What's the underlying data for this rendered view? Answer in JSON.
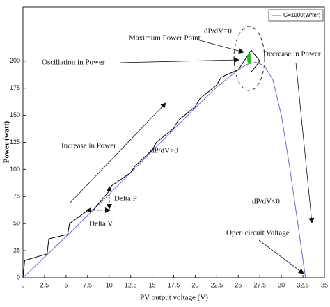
{
  "chart_data": {
    "type": "line",
    "xlabel": "PV output voltage (V)",
    "ylabel": "Power (watt)",
    "xlim": [
      0,
      35
    ],
    "ylim": [
      0,
      250
    ],
    "xticks": [
      0,
      2.5,
      5,
      7.5,
      10,
      12.5,
      15,
      17.5,
      20,
      22.5,
      25,
      27.5,
      30,
      32.5,
      35
    ],
    "yticks": [
      0,
      25,
      50,
      75,
      100,
      125,
      150,
      175,
      200
    ],
    "legend": "upper right",
    "series": [
      {
        "name": "G=1000(W/m²)",
        "color": "#6a6ad8",
        "x": [
          0,
          5,
          10,
          15,
          20,
          22.5,
          25,
          26,
          27,
          28,
          29,
          30,
          31,
          32,
          32.8
        ],
        "values": [
          0,
          38,
          77,
          117,
          157,
          176,
          192,
          197,
          199,
          196,
          183,
          150,
          100,
          45,
          0
        ]
      },
      {
        "color": "#000000",
        "x": [
          0,
          0.2,
          2.8,
          3,
          5.2,
          5.4,
          7.5,
          8.2,
          10,
          10.3,
          12.5,
          13,
          15,
          15.5,
          17.5,
          18,
          20,
          20.5,
          22.5,
          23,
          25,
          25.5,
          26.5,
          27.5,
          26.5
        ],
        "values": [
          0,
          16,
          22,
          36,
          40,
          50,
          62,
          63,
          80,
          85,
          97,
          103,
          118,
          125,
          138,
          145,
          158,
          165,
          178,
          185,
          192,
          198,
          210,
          200,
          190
        ]
      }
    ],
    "annotations": [
      "Maximum Power Point",
      "dP/dV=0",
      "Oscillation in Power",
      "Decrease in Power",
      "Increase in Power",
      "dP/dV>0",
      "Delta P",
      "Delta V",
      "dP/dV<0",
      "Open circuit Voltage"
    ]
  }
}
